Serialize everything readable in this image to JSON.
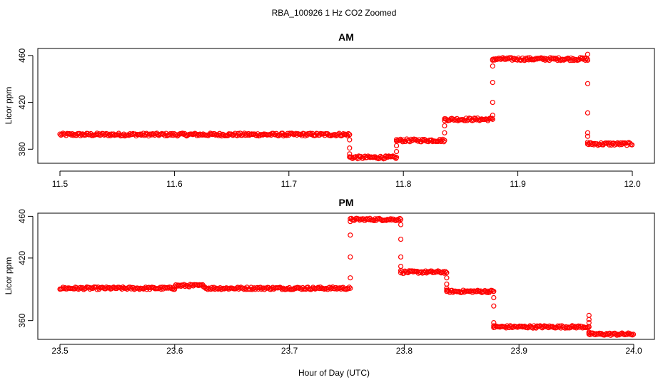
{
  "page": {
    "title": "RBA_100926  1 Hz CO2 Zoomed",
    "xlabel": "Hour of Day (UTC)"
  },
  "colors": {
    "points": "#ff0000",
    "axis": "#000000",
    "background": "#ffffff"
  },
  "chart_data": [
    {
      "type": "scatter",
      "title": "AM",
      "ylabel": "Licor ppm",
      "xlabel": "",
      "xlim": [
        11.5,
        12.0
      ],
      "ylim": [
        368,
        466
      ],
      "xticks": [
        11.5,
        11.6,
        11.7,
        11.8,
        11.9,
        12.0
      ],
      "xtick_labels": [
        "11.5",
        "11.6",
        "11.7",
        "11.8",
        "11.9",
        "12.0"
      ],
      "yticks": [
        380,
        420,
        460
      ],
      "ytick_labels": [
        "380",
        "420",
        "460"
      ],
      "grid": false,
      "marker": "open-circle",
      "levels": [
        {
          "x_start": 11.5,
          "x_end": 11.753,
          "y": 392.5
        },
        {
          "x_start": 11.753,
          "x_end": 11.794,
          "y": 373.0
        },
        {
          "x_start": 11.794,
          "x_end": 11.836,
          "y": 387.5
        },
        {
          "x_start": 11.836,
          "x_end": 11.878,
          "y": 405.5
        },
        {
          "x_start": 11.878,
          "x_end": 11.961,
          "y": 457.0
        },
        {
          "x_start": 11.961,
          "x_end": 12.0,
          "y": 384.5
        }
      ],
      "transitions": [
        {
          "x": 11.753,
          "y": [
            392.5,
            388,
            381,
            376,
            373.5
          ]
        },
        {
          "x": 11.794,
          "y": [
            373,
            378,
            383,
            387
          ]
        },
        {
          "x": 11.836,
          "y": [
            387.5,
            394,
            400,
            404.5
          ]
        },
        {
          "x": 11.878,
          "y": [
            405.5,
            409,
            420,
            437,
            451,
            456
          ]
        },
        {
          "x": 11.961,
          "y": [
            461,
            456,
            436,
            411,
            394,
            391,
            386,
            384.5
          ]
        }
      ]
    },
    {
      "type": "scatter",
      "title": "PM",
      "ylabel": "Licor ppm",
      "xlabel": "Hour of Day (UTC)",
      "xlim": [
        23.5,
        24.0
      ],
      "ylim": [
        342,
        463
      ],
      "xticks": [
        23.5,
        23.6,
        23.7,
        23.8,
        23.9,
        24.0
      ],
      "xtick_labels": [
        "23.5",
        "23.6",
        "23.7",
        "23.8",
        "23.9",
        "24.0"
      ],
      "yticks": [
        360,
        420,
        460
      ],
      "ytick_labels": [
        "360",
        "420",
        "460"
      ],
      "grid": false,
      "marker": "open-circle",
      "levels": [
        {
          "x_start": 23.5,
          "x_end": 23.6,
          "y": 391.0
        },
        {
          "x_start": 23.6,
          "x_end": 23.627,
          "y": 393.5
        },
        {
          "x_start": 23.627,
          "x_end": 23.753,
          "y": 391.0
        },
        {
          "x_start": 23.753,
          "x_end": 23.797,
          "y": 457.0
        },
        {
          "x_start": 23.797,
          "x_end": 23.837,
          "y": 406.5
        },
        {
          "x_start": 23.837,
          "x_end": 23.878,
          "y": 388.0
        },
        {
          "x_start": 23.878,
          "x_end": 23.961,
          "y": 354.0
        },
        {
          "x_start": 23.961,
          "x_end": 24.0,
          "y": 347.0
        }
      ],
      "transitions": [
        {
          "x": 23.753,
          "y": [
            391,
            401,
            421,
            442,
            455
          ]
        },
        {
          "x": 23.797,
          "y": [
            457,
            452,
            438,
            421,
            412,
            408
          ]
        },
        {
          "x": 23.837,
          "y": [
            406,
            401,
            395,
            391,
            388
          ]
        },
        {
          "x": 23.878,
          "y": [
            388,
            382,
            374,
            358,
            355
          ]
        },
        {
          "x": 23.961,
          "y": [
            354,
            365,
            361,
            358,
            349,
            347
          ]
        }
      ]
    }
  ]
}
